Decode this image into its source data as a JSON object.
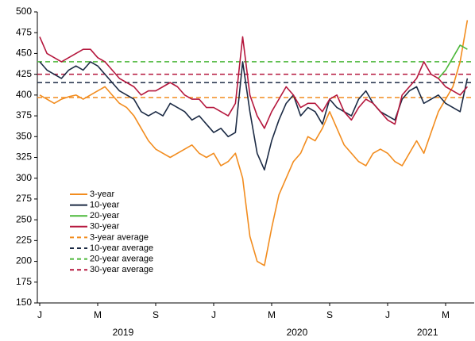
{
  "chart_data": {
    "type": "line",
    "categories": [
      "J",
      null,
      null,
      null,
      null,
      null,
      null,
      null,
      "M",
      null,
      null,
      null,
      null,
      null,
      null,
      null,
      "S",
      null,
      null,
      null,
      null,
      null,
      null,
      null,
      "J",
      null,
      null,
      null,
      null,
      null,
      null,
      null,
      "M",
      null,
      null,
      null,
      null,
      null,
      null,
      null,
      "S",
      null,
      null,
      null,
      null,
      null,
      null,
      null,
      "J",
      null,
      null,
      null,
      null,
      null,
      null,
      null,
      "M",
      null,
      null,
      null
    ],
    "year_labels": [
      "2019",
      "2020",
      "2021"
    ],
    "series": [
      {
        "name": "3-year",
        "color": "#f28c1e",
        "values": [
          400,
          395,
          390,
          395,
          398,
          400,
          395,
          400,
          405,
          410,
          400,
          390,
          385,
          375,
          360,
          345,
          335,
          330,
          325,
          330,
          335,
          340,
          330,
          325,
          330,
          315,
          320,
          330,
          300,
          230,
          200,
          195,
          240,
          280,
          300,
          320,
          330,
          350,
          345,
          360,
          380,
          360,
          340,
          330,
          320,
          315,
          330,
          335,
          330,
          320,
          315,
          330,
          345,
          330,
          355,
          380,
          395,
          410,
          440,
          490
        ]
      },
      {
        "name": "10-year",
        "color": "#1b2a44",
        "values": [
          440,
          430,
          425,
          420,
          430,
          435,
          430,
          440,
          435,
          425,
          415,
          405,
          400,
          395,
          380,
          375,
          380,
          375,
          390,
          385,
          380,
          370,
          375,
          365,
          355,
          360,
          350,
          355,
          440,
          380,
          330,
          310,
          345,
          370,
          390,
          400,
          375,
          385,
          380,
          365,
          395,
          385,
          380,
          375,
          395,
          405,
          390,
          380,
          375,
          370,
          395,
          405,
          410,
          390,
          395,
          400,
          390,
          385,
          380,
          420
        ]
      },
      {
        "name": "20-year",
        "color": "#4cb83a",
        "values": [
          null,
          null,
          null,
          null,
          null,
          null,
          null,
          null,
          null,
          null,
          null,
          null,
          null,
          null,
          null,
          null,
          null,
          null,
          null,
          null,
          null,
          null,
          null,
          null,
          null,
          null,
          null,
          null,
          null,
          null,
          null,
          null,
          null,
          null,
          null,
          null,
          null,
          null,
          null,
          null,
          null,
          null,
          null,
          null,
          null,
          null,
          null,
          null,
          null,
          null,
          null,
          null,
          null,
          null,
          null,
          420,
          430,
          445,
          460,
          455
        ]
      },
      {
        "name": "30-year",
        "color": "#b5173d",
        "values": [
          470,
          450,
          445,
          440,
          445,
          450,
          455,
          455,
          445,
          440,
          430,
          420,
          415,
          410,
          400,
          405,
          405,
          410,
          415,
          410,
          400,
          395,
          395,
          385,
          385,
          380,
          375,
          390,
          470,
          400,
          375,
          360,
          380,
          395,
          410,
          400,
          385,
          390,
          390,
          380,
          395,
          400,
          380,
          370,
          385,
          395,
          390,
          380,
          370,
          365,
          400,
          410,
          420,
          440,
          425,
          420,
          410,
          405,
          400,
          410
        ]
      }
    ],
    "average_lines": [
      {
        "name": "3-year average",
        "color": "#f28c1e",
        "value": 397
      },
      {
        "name": "10-year average",
        "color": "#1b2a44",
        "value": 415
      },
      {
        "name": "20-year average",
        "color": "#4cb83a",
        "value": 440
      },
      {
        "name": "30-year average",
        "color": "#b5173d",
        "value": 425
      }
    ],
    "ylim": [
      150,
      500
    ],
    "yticks": [
      150,
      175,
      200,
      225,
      250,
      275,
      300,
      325,
      350,
      375,
      400,
      425,
      450,
      475,
      500
    ],
    "legend": "left"
  }
}
